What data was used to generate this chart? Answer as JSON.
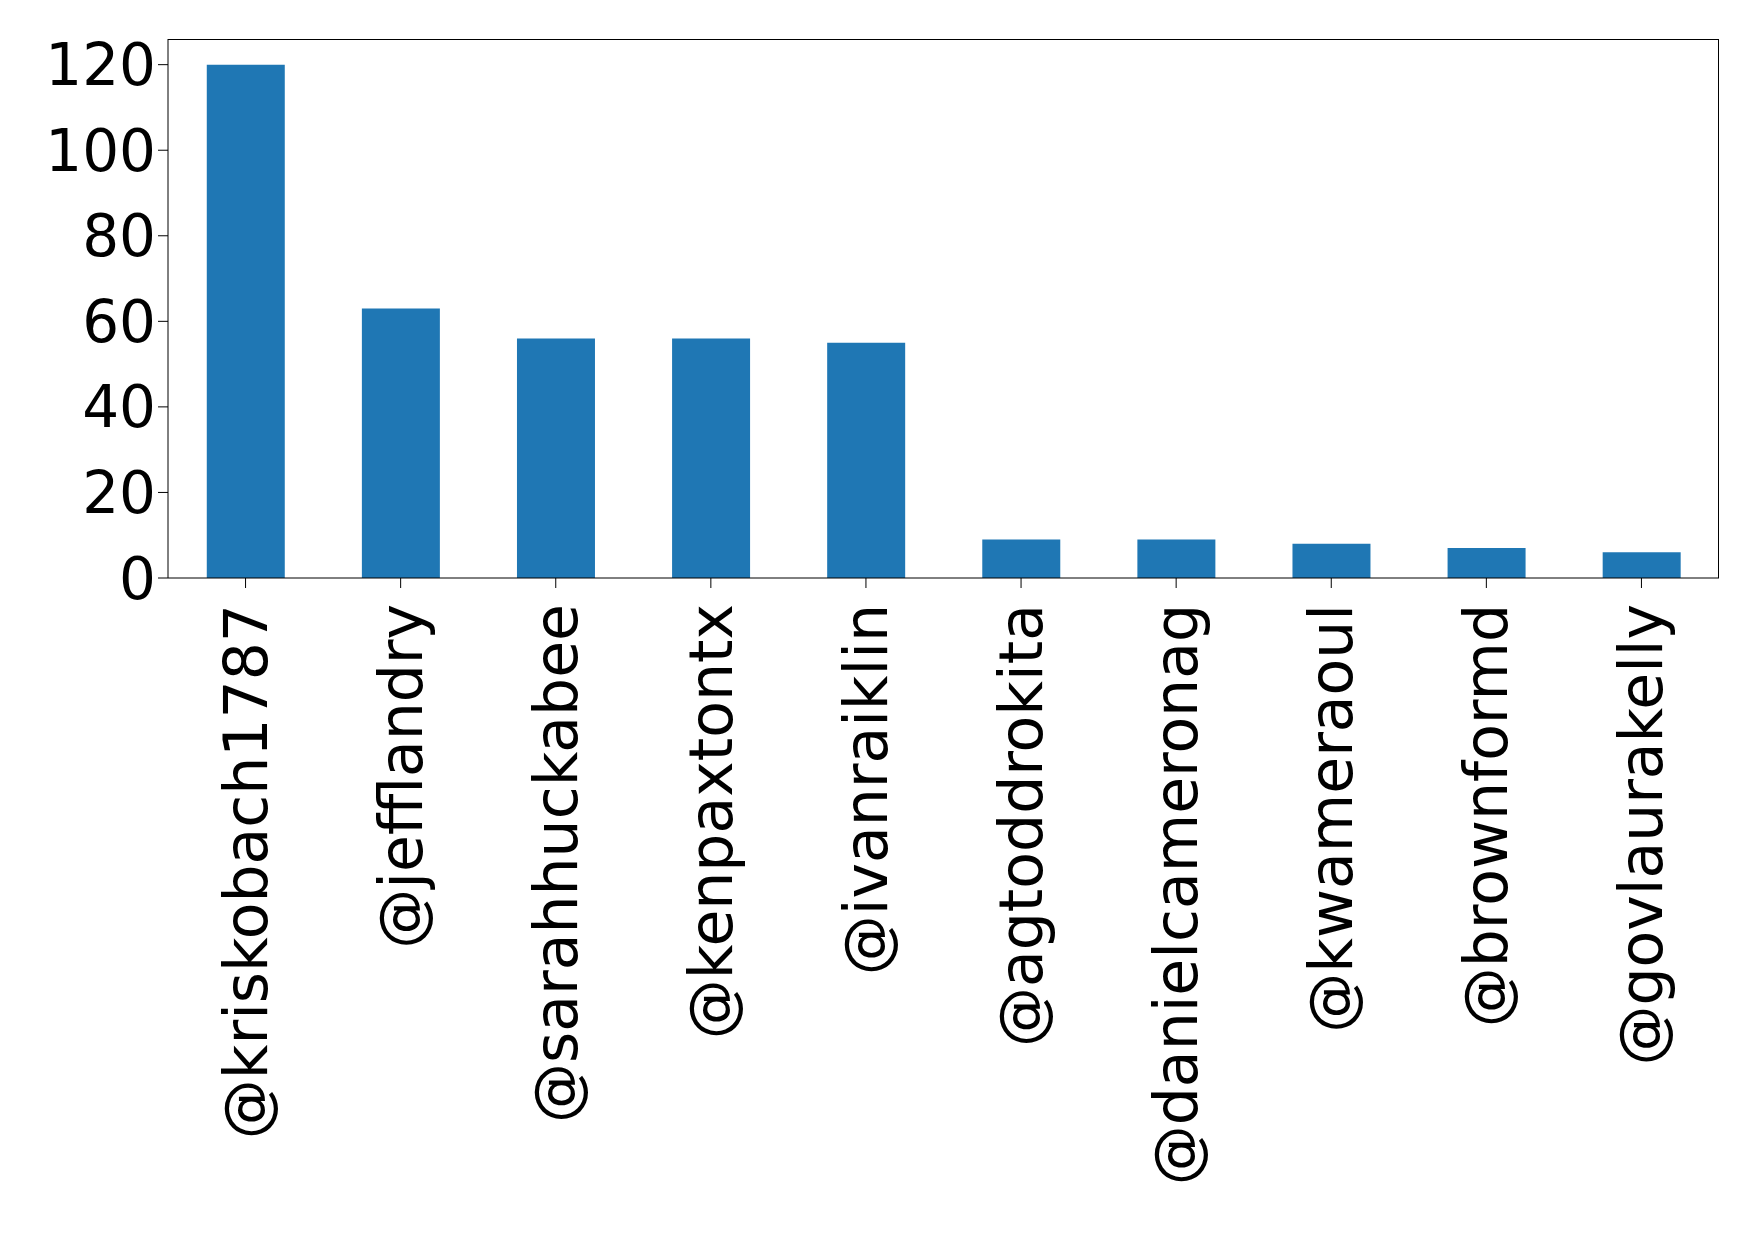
{
  "chart_data": {
    "type": "bar",
    "categories": [
      "@kriskobach1787",
      "@jefflandry",
      "@sarahhuckabee",
      "@kenpaxtontx",
      "@ivanraiklin",
      "@agtoddrokita",
      "@danielcameronag",
      "@kwameraoul",
      "@brownformd",
      "@govlaurakelly"
    ],
    "values": [
      120,
      63,
      56,
      56,
      55,
      9,
      9,
      8,
      7,
      6
    ],
    "color": "#1f77b4",
    "ylim": [
      0,
      126
    ],
    "yticks": [
      0,
      20,
      40,
      60,
      80,
      100,
      120
    ],
    "grid": false
  }
}
